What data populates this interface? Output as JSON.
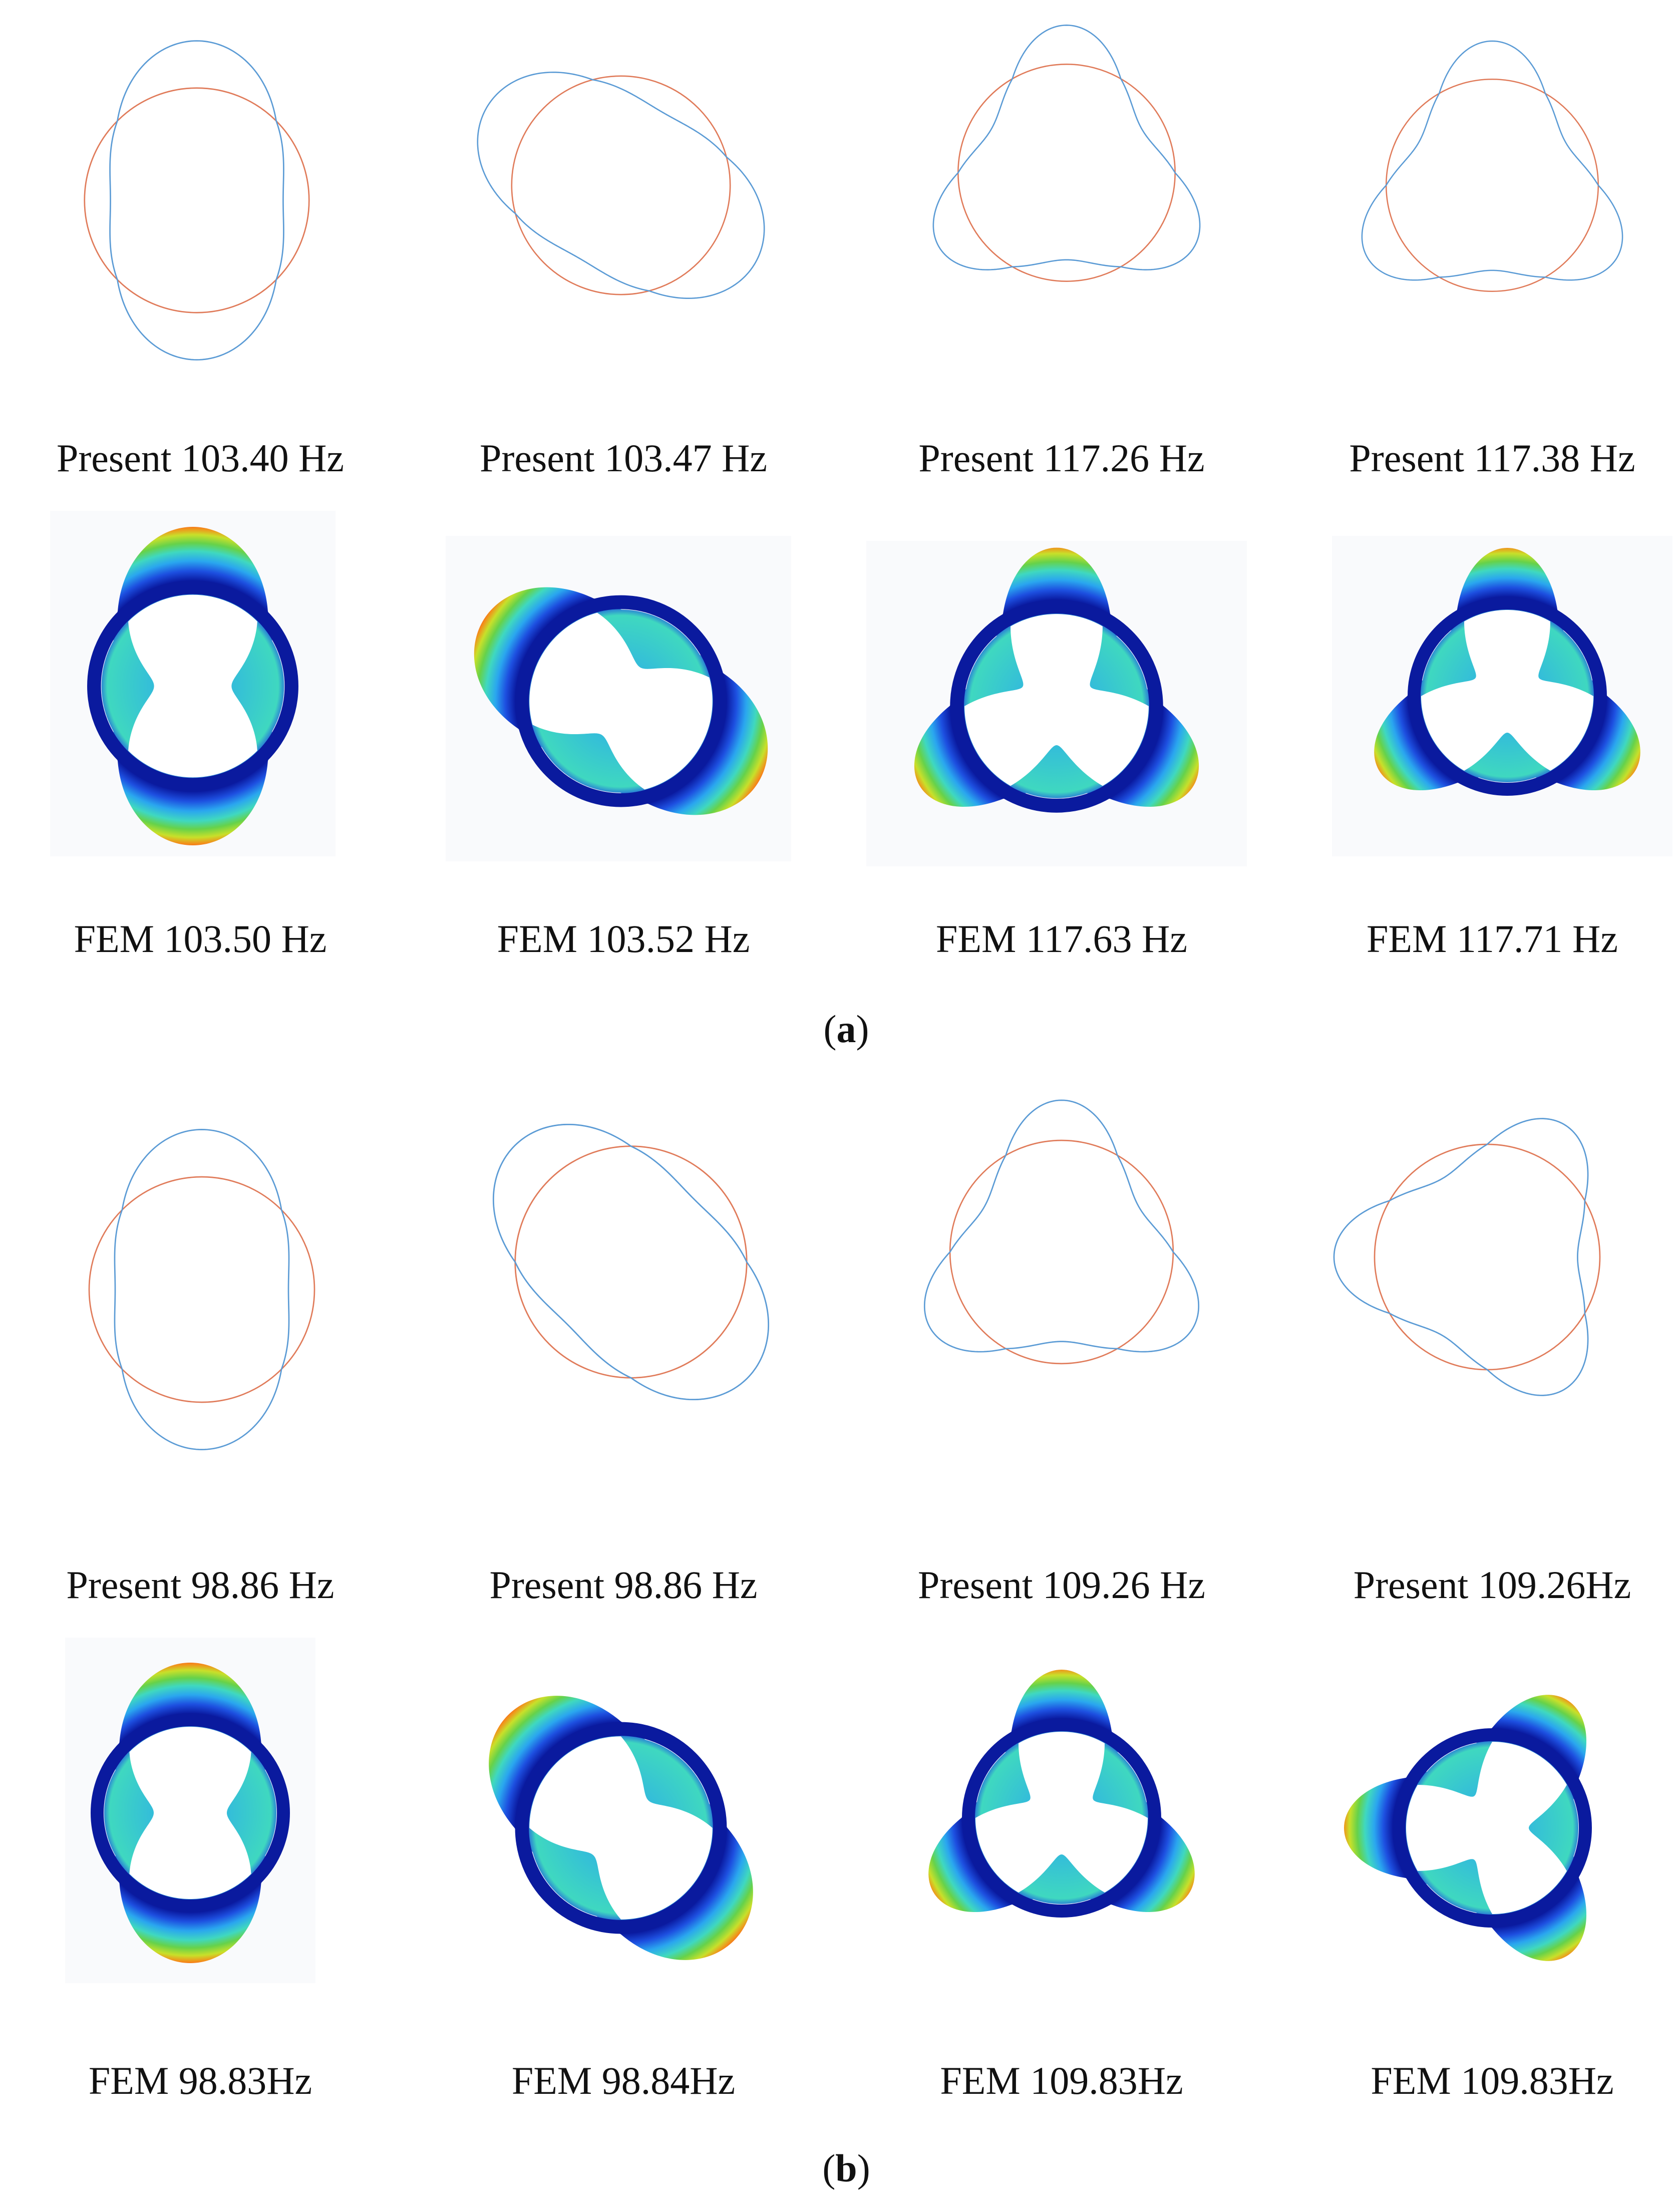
{
  "parts": [
    {
      "label_open": "(",
      "label_letter": "a",
      "label_close": ")",
      "present_captions": [
        "Present 103.40 Hz",
        "Present 103.47 Hz",
        "Present 117.26 Hz",
        "Present 117.38 Hz"
      ],
      "fem_captions": [
        "FEM 103.50 Hz",
        "FEM 103.52 Hz",
        "FEM 117.63 Hz",
        "FEM 117.71 Hz"
      ]
    },
    {
      "label_open": "(",
      "label_letter": "b",
      "label_close": ")",
      "present_captions": [
        "Present 98.86 Hz",
        "Present 98.86 Hz",
        "Present 109.26 Hz",
        "Present 109.26Hz"
      ],
      "fem_captions": [
        "FEM 98.83Hz",
        "FEM 98.84Hz",
        "FEM 109.83Hz",
        "FEM 109.83Hz"
      ]
    }
  ],
  "colors": {
    "reference_circle": "#e07b5a",
    "mode_shape": "#5b9bd5",
    "fem_ring": "#0a1a9e",
    "fem_colormap": [
      "#0a1aa0",
      "#1d4fe0",
      "#2aa6ef",
      "#3fd8c0",
      "#66d24a",
      "#c8e02a",
      "#f5d21e",
      "#f58a1a",
      "#e23414"
    ]
  },
  "icons": [
    "reference-circle",
    "deformed-mode-shape",
    "fem-contour-plot"
  ]
}
